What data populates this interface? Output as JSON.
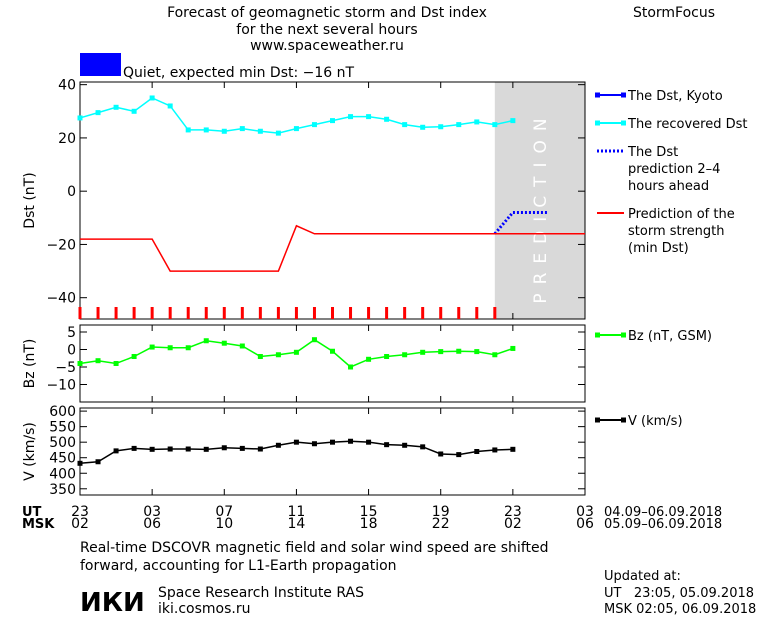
{
  "header": {
    "title_lines": [
      "Forecast of geomagnetic storm and Dst index",
      "for the next several hours",
      "www.spaceweather.ru"
    ],
    "brand": "StormFocus",
    "status_color": "#0000ff",
    "status_text": "Quiet, expected min Dst: −16 nT"
  },
  "chart_data": [
    {
      "type": "line",
      "ylabel": "Dst (nT)",
      "ylim": [
        -48,
        41
      ],
      "yticks": [
        40,
        20,
        0,
        -20,
        -40
      ],
      "xlim": [
        0,
        28
      ],
      "prediction_zone": {
        "x": [
          23,
          28
        ],
        "label": "PREDICTION",
        "color": "#d9d9d9"
      },
      "legend_position": "right",
      "series": [
        {
          "name": "The Dst, Kyoto",
          "color": "#0000ff",
          "style": "line-square",
          "x": [],
          "y": []
        },
        {
          "name": "The recovered Dst",
          "color": "#00ffff",
          "style": "line-square",
          "x": [
            0,
            1,
            2,
            3,
            4,
            5,
            6,
            7,
            8,
            9,
            10,
            11,
            12,
            13,
            14,
            15,
            16,
            17,
            18,
            19,
            20,
            21,
            22,
            23,
            24
          ],
          "y": [
            27.5,
            29.5,
            31.5,
            30,
            35,
            32,
            23,
            23,
            22.5,
            23.5,
            22.5,
            21.8,
            23.5,
            25,
            26.5,
            28,
            28,
            27,
            25,
            24,
            24.2,
            25,
            26,
            25,
            26.5
          ]
        },
        {
          "name": "The Dst prediction 2–4 hours ahead",
          "color": "#0000ff",
          "style": "dotted",
          "x": [
            23,
            24,
            25,
            26
          ],
          "y": [
            -16,
            -8,
            -8,
            -8
          ]
        },
        {
          "name": "Prediction of the storm strength (min Dst)",
          "color": "#ff0000",
          "style": "line",
          "x": [
            0,
            4,
            5,
            10,
            11,
            12,
            13,
            28
          ],
          "y": [
            -18,
            -18,
            -30,
            -30,
            -30,
            -13,
            -16,
            -16
          ]
        }
      ],
      "storm_markers": {
        "color": "#ff0000",
        "x": [
          0,
          1,
          2,
          3,
          4,
          5,
          6,
          7,
          8,
          9,
          10,
          11,
          12,
          13,
          14,
          15,
          16,
          17,
          18,
          19,
          20,
          21,
          22,
          23
        ]
      }
    },
    {
      "type": "line",
      "ylabel": "Bz (nT)",
      "ylim": [
        -15,
        7
      ],
      "yticks": [
        5,
        0,
        -5,
        -10
      ],
      "legend_position": "right",
      "series": [
        {
          "name": "Bz (nT, GSM)",
          "color": "#00ff00",
          "style": "line-square",
          "x": [
            0,
            1,
            2,
            3,
            4,
            5,
            6,
            7,
            8,
            9,
            10,
            11,
            12,
            13,
            14,
            15,
            16,
            17,
            18,
            19,
            20,
            21,
            22,
            23,
            24
          ],
          "y": [
            -4,
            -3.2,
            -4,
            -2,
            0.7,
            0.5,
            0.5,
            2.5,
            1.8,
            1,
            -2,
            -1.5,
            -0.8,
            2.8,
            -0.5,
            -5,
            -2.8,
            -2,
            -1.5,
            -0.8,
            -0.6,
            -0.5,
            -0.6,
            -1.5,
            0.3
          ]
        }
      ]
    },
    {
      "type": "line",
      "ylabel": "V (km/s)",
      "ylim": [
        330,
        610
      ],
      "yticks": [
        600,
        550,
        500,
        450,
        400,
        350
      ],
      "legend_position": "right",
      "series": [
        {
          "name": "V (km/s)",
          "color": "#000000",
          "style": "line-square",
          "x": [
            0,
            1,
            2,
            3,
            4,
            5,
            6,
            7,
            8,
            9,
            10,
            11,
            12,
            13,
            14,
            15,
            16,
            17,
            18,
            19,
            20,
            21,
            22,
            23,
            24
          ],
          "y": [
            432,
            437,
            472,
            480,
            477,
            478,
            478,
            477,
            482,
            480,
            478,
            490,
            500,
            495,
            500,
            503,
            500,
            492,
            490,
            485,
            462,
            460,
            470,
            475,
            477
          ]
        }
      ]
    }
  ],
  "time_axis": {
    "ut_label": "UT",
    "msk_label": "MSK",
    "ut_ticks": [
      "23",
      "03",
      "07",
      "11",
      "15",
      "19",
      "23",
      "03"
    ],
    "msk_ticks": [
      "02",
      "06",
      "10",
      "14",
      "18",
      "22",
      "02",
      "06"
    ],
    "ut_range": "04.09–06.09.2018",
    "msk_range": "05.09–06.09.2018"
  },
  "footer": {
    "note_lines": [
      "Real-time DSCOVR magnetic field and solar wind speed are shifted",
      "forward, accounting for L1-Earth propagation"
    ],
    "logo_text": "ИКИ",
    "institute": "Space Research Institute RAS",
    "site": "iki.cosmos.ru",
    "updated_label": "Updated at:",
    "updated_ut": "UT   23:05, 05.09.2018",
    "updated_msk": "MSK 02:05, 06.09.2018"
  }
}
